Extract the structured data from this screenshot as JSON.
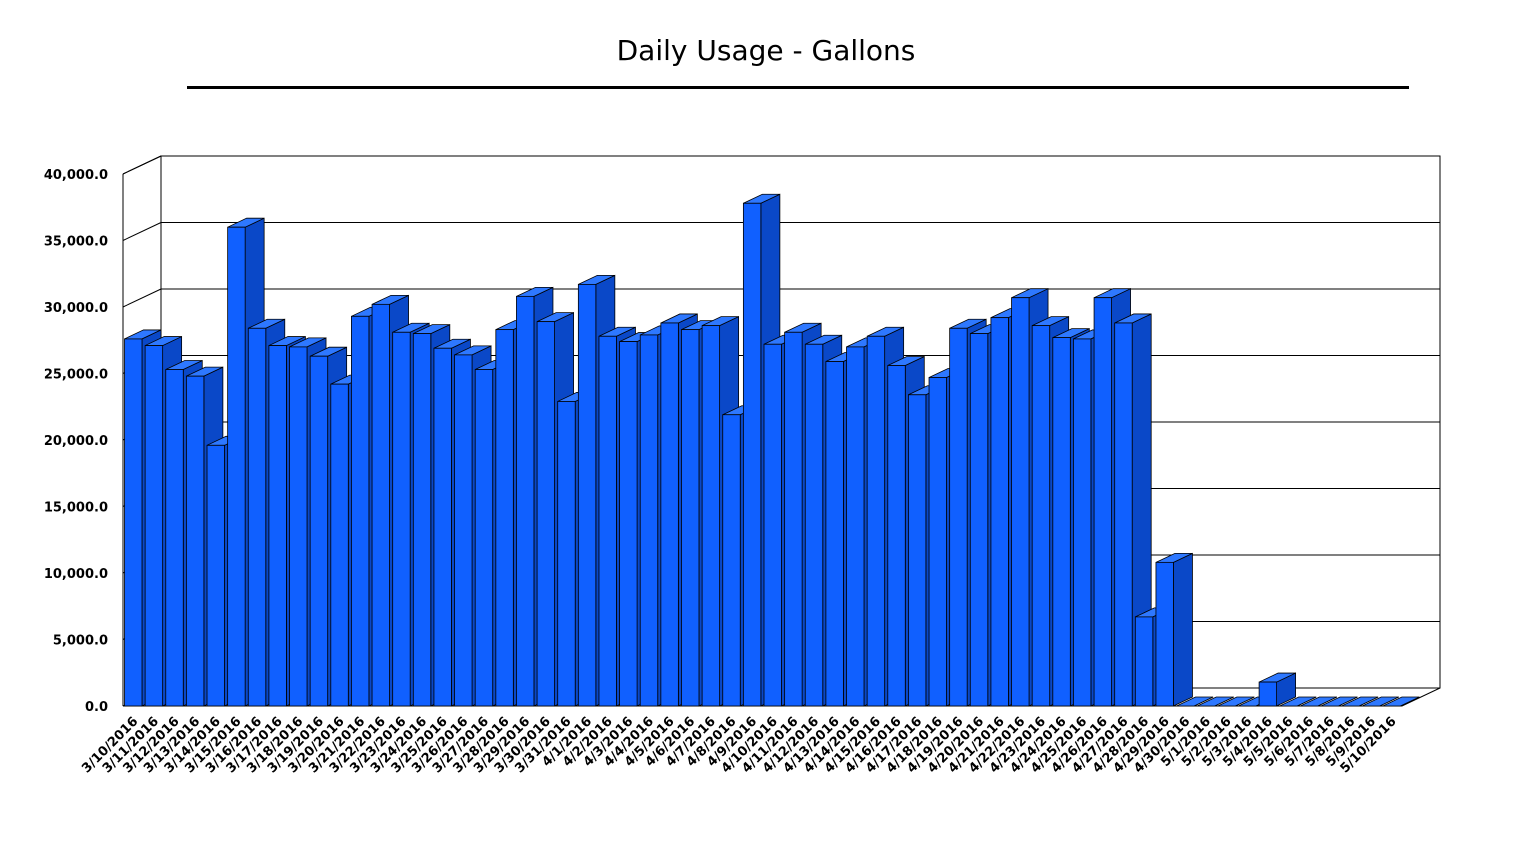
{
  "colors": {
    "bar_front": "#1060FF",
    "bar_top": "#2E78FF",
    "bar_side": "#0A48C8",
    "bar_edge": "#000000",
    "grid": "#000000"
  },
  "chart_data": {
    "type": "bar",
    "title": "Daily Usage - Gallons",
    "xlabel": "",
    "ylabel": "",
    "ylim": [
      0,
      40000
    ],
    "yticks": [
      "0.0",
      "5,000.0",
      "10,000.0",
      "15,000.0",
      "20,000.0",
      "25,000.0",
      "30,000.0",
      "35,000.0",
      "40,000.0"
    ],
    "grid": true,
    "style": "3d-bar",
    "categories": [
      "3/10/2016",
      "3/11/2016",
      "3/12/2016",
      "3/13/2016",
      "3/14/2016",
      "3/15/2016",
      "3/16/2016",
      "3/17/2016",
      "3/18/2016",
      "3/19/2016",
      "3/20/2016",
      "3/21/2016",
      "3/22/2016",
      "3/23/2016",
      "3/24/2016",
      "3/25/2016",
      "3/26/2016",
      "3/27/2016",
      "3/28/2016",
      "3/29/2016",
      "3/30/2016",
      "3/31/2016",
      "4/1/2016",
      "4/2/2016",
      "4/3/2016",
      "4/4/2016",
      "4/5/2016",
      "4/6/2016",
      "4/7/2016",
      "4/8/2016",
      "4/9/2016",
      "4/10/2016",
      "4/11/2016",
      "4/12/2016",
      "4/13/2016",
      "4/14/2016",
      "4/15/2016",
      "4/16/2016",
      "4/17/2016",
      "4/18/2016",
      "4/19/2016",
      "4/20/2016",
      "4/21/2016",
      "4/22/2016",
      "4/23/2016",
      "4/24/2016",
      "4/25/2016",
      "4/26/2016",
      "4/27/2016",
      "4/28/2016",
      "4/29/2016",
      "4/30/2016",
      "5/1/2016",
      "5/2/2016",
      "5/3/2016",
      "5/4/2016",
      "5/5/2016",
      "5/6/2016",
      "5/7/2016",
      "5/8/2016",
      "5/9/2016",
      "5/10/2016"
    ],
    "values": [
      27600,
      27100,
      25300,
      24800,
      19600,
      36000,
      28400,
      27100,
      27000,
      26300,
      24200,
      29300,
      30200,
      28100,
      28000,
      26900,
      26400,
      25300,
      28300,
      30800,
      28900,
      22900,
      31700,
      27800,
      27400,
      27900,
      28800,
      28300,
      28600,
      21900,
      37800,
      27200,
      28100,
      27200,
      25900,
      27000,
      27800,
      25600,
      23400,
      24700,
      28400,
      28000,
      29200,
      30700,
      28600,
      27700,
      27600,
      30700,
      28800,
      6700,
      10800,
      0,
      0,
      0,
      0,
      1800,
      0,
      0,
      0,
      0,
      0,
      0
    ]
  }
}
